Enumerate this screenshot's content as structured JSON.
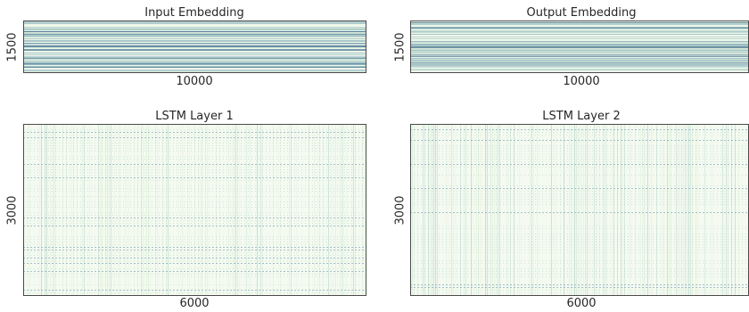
{
  "chart_data": [
    {
      "type": "heatmap",
      "title": "Input Embedding",
      "xlabel": "10000",
      "ylabel": "1500",
      "pattern": "horizontal-stripes",
      "colors": {
        "background": "#eef7ea",
        "light": "#bcd9cc",
        "mid": "#7fa9b8",
        "dark": "#3f6f8f"
      }
    },
    {
      "type": "heatmap",
      "title": "Output Embedding",
      "xlabel": "10000",
      "ylabel": "1500",
      "pattern": "horizontal-stripes",
      "colors": {
        "background": "#eef7ea",
        "light": "#bcd9cc",
        "mid": "#7fa9b8",
        "dark": "#3f6f8f"
      }
    },
    {
      "type": "heatmap",
      "title": "LSTM Layer 1",
      "xlabel": "6000",
      "ylabel": "3000",
      "pattern": "grid-dots",
      "colors": {
        "background": "#f4faf0",
        "light": "#d9ecd3",
        "mid": "#a9ccc4",
        "dark": "#6f9bb4"
      }
    },
    {
      "type": "heatmap",
      "title": "LSTM Layer 2",
      "xlabel": "6000",
      "ylabel": "3000",
      "pattern": "grid-dots",
      "colors": {
        "background": "#f4faf0",
        "light": "#d9ecd3",
        "mid": "#a9ccc4",
        "dark": "#6f9bb4"
      }
    }
  ]
}
